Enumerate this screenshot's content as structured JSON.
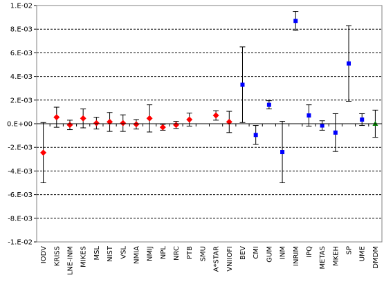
{
  "chart_data": {
    "type": "scatter",
    "title": "",
    "xlabel": "",
    "ylabel": "",
    "ylim": [
      -0.01,
      0.01
    ],
    "yticks": [
      {
        "value": -0.01,
        "label": "-1.E-02"
      },
      {
        "value": -0.008,
        "label": "-8.E-03"
      },
      {
        "value": -0.006,
        "label": "-6.E-03"
      },
      {
        "value": -0.004,
        "label": "-4.E-03"
      },
      {
        "value": -0.002,
        "label": "-2.E-03"
      },
      {
        "value": 0.0,
        "label": "0.E+00"
      },
      {
        "value": 0.002,
        "label": "2.E-03"
      },
      {
        "value": 0.004,
        "label": "4.E-03"
      },
      {
        "value": 0.006,
        "label": "6.E-03"
      },
      {
        "value": 0.008,
        "label": "8.E-03"
      },
      {
        "value": 0.01,
        "label": "1.E-02"
      }
    ],
    "grid": "horizontal dashed",
    "categories": [
      "IODV",
      "KRISS",
      "LNE-INM",
      "MIKES",
      "MSL",
      "NIST",
      "VSL",
      "NMIA",
      "NMIJ",
      "NPL",
      "NRC",
      "PTB",
      "SMU",
      "A*STAR",
      "VNIIOFI",
      "BEV",
      "CMI",
      "GUM",
      "INM",
      "INRIM",
      "IPQ",
      "METAS",
      "MKEH",
      "SP",
      "UME",
      "DMDM"
    ],
    "series": [
      {
        "marker": "diamond",
        "color": "#ff0000",
        "points": [
          {
            "category": "IODV",
            "y": -0.00245,
            "err": 0.00255
          },
          {
            "category": "KRISS",
            "y": 0.00055,
            "err": 0.00085
          },
          {
            "category": "LNE-INM",
            "y": -0.0001,
            "err": 0.0004
          },
          {
            "category": "MIKES",
            "y": 0.00045,
            "err": 0.0008
          },
          {
            "category": "MSL",
            "y": 5e-05,
            "err": 0.0005
          },
          {
            "category": "NIST",
            "y": 0.00015,
            "err": 0.0008
          },
          {
            "category": "VSL",
            "y": 5e-05,
            "err": 0.0007
          },
          {
            "category": "NMIA",
            "y": -5e-05,
            "err": 0.0004
          },
          {
            "category": "NMIJ",
            "y": 0.00045,
            "err": 0.00115
          },
          {
            "category": "NPL",
            "y": -0.0003,
            "err": 0.00025
          },
          {
            "category": "NRC",
            "y": -0.0001,
            "err": 0.0003
          },
          {
            "category": "PTB",
            "y": 0.00035,
            "err": 0.00055
          },
          {
            "category": "A*STAR",
            "y": 0.0007,
            "err": 0.0004
          },
          {
            "category": "VNIIOFI",
            "y": 0.00015,
            "err": 0.0009
          }
        ]
      },
      {
        "marker": "square",
        "color": "#0000ff",
        "points": [
          {
            "category": "BEV",
            "y": 0.0033,
            "err": 0.0032
          },
          {
            "category": "CMI",
            "y": -0.00095,
            "err": 0.0008
          },
          {
            "category": "GUM",
            "y": 0.0016,
            "err": 0.00035
          },
          {
            "category": "INM",
            "y": -0.0024,
            "err": 0.0026
          },
          {
            "category": "INRIM",
            "y": 0.0087,
            "err": 0.0008
          },
          {
            "category": "IPQ",
            "y": 0.0007,
            "err": 0.0009
          },
          {
            "category": "METAS",
            "y": -0.00015,
            "err": 0.0004
          },
          {
            "category": "MKEH",
            "y": -0.00075,
            "err": 0.0016
          },
          {
            "category": "SP",
            "y": 0.0051,
            "err": 0.0032
          },
          {
            "category": "UME",
            "y": 0.00035,
            "err": 0.0005
          }
        ]
      },
      {
        "marker": "triangle",
        "color": "#008000",
        "points": [
          {
            "category": "DMDM",
            "y": 0.0,
            "err": 0.00115
          }
        ]
      }
    ]
  }
}
